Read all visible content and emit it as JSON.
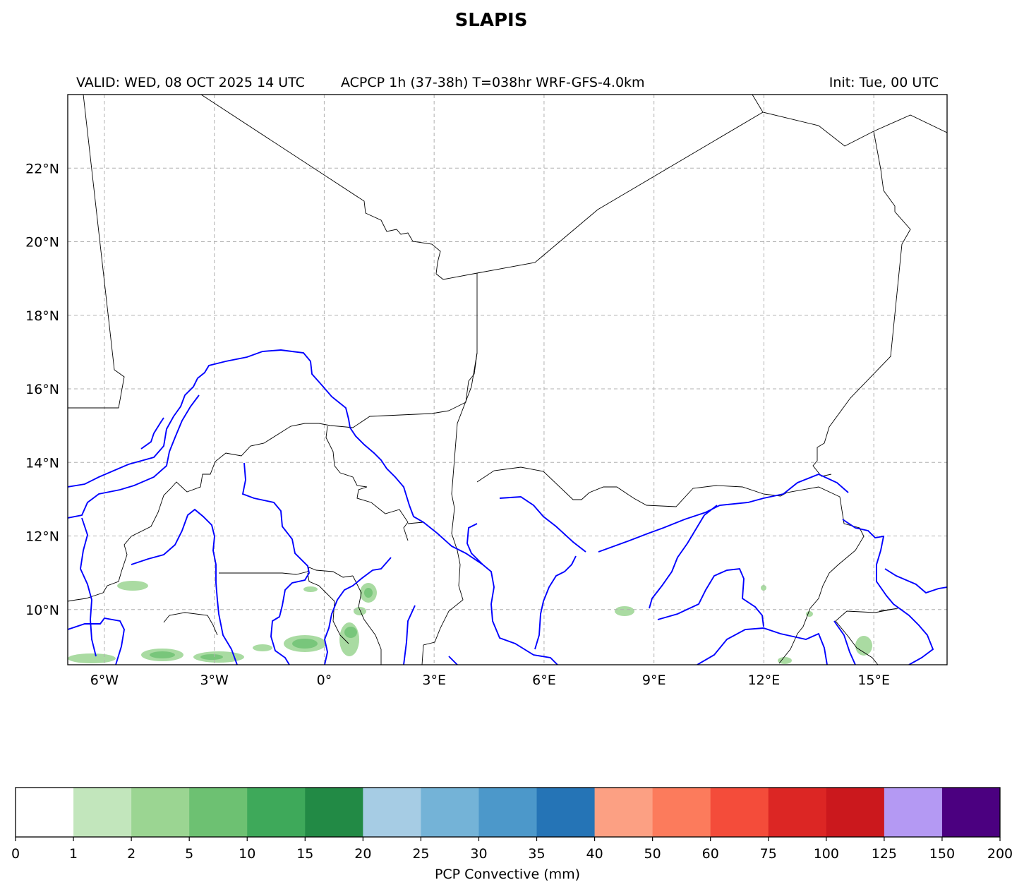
{
  "title": "SLAPIS",
  "header": {
    "valid_label": "VALID: WED, 08 OCT 2025 14 UTC",
    "product_label": "ACPCP 1h (37-38h) T=038hr WRF-GFS-4.0km",
    "init_label": "Init: Tue, 00 UTC"
  },
  "map": {
    "lon_range": [
      -7,
      17
    ],
    "lat_range": [
      8.5,
      24
    ],
    "lon_ticks": [
      {
        "value": -6,
        "label": "6°W"
      },
      {
        "value": -3,
        "label": "3°W"
      },
      {
        "value": 0,
        "label": "0°"
      },
      {
        "value": 3,
        "label": "3°E"
      },
      {
        "value": 6,
        "label": "6°E"
      },
      {
        "value": 9,
        "label": "9°E"
      },
      {
        "value": 12,
        "label": "12°E"
      },
      {
        "value": 15,
        "label": "15°E"
      }
    ],
    "lat_ticks": [
      {
        "value": 22,
        "label": "22°N"
      },
      {
        "value": 20,
        "label": "20°N"
      },
      {
        "value": 18,
        "label": "18°N"
      },
      {
        "value": 16,
        "label": "16°N"
      },
      {
        "value": 14,
        "label": "14°N"
      },
      {
        "value": 12,
        "label": "12°N"
      },
      {
        "value": 10,
        "label": "10°N"
      }
    ],
    "grid": true,
    "colors": {
      "borders": "#000000",
      "rivers": "#0000ff",
      "grid": "#b0b0b0"
    }
  },
  "colorbar": {
    "label": "PCP Convective (mm)",
    "bounds": [
      "0",
      "1",
      "2",
      "5",
      "10",
      "15",
      "20",
      "25",
      "30",
      "35",
      "40",
      "50",
      "60",
      "75",
      "100",
      "125",
      "150",
      "200"
    ],
    "colors": [
      "#ffffff",
      "#c2e6bc",
      "#9bd592",
      "#6dc172",
      "#3ea95a",
      "#228a45",
      "#a6cce4",
      "#74b3d7",
      "#4c98ca",
      "#2574b6",
      "#fca083",
      "#fc7b5c",
      "#f44c3a",
      "#dc2624",
      "#cb181d",
      "#b499f3",
      "#4b0080"
    ]
  }
}
